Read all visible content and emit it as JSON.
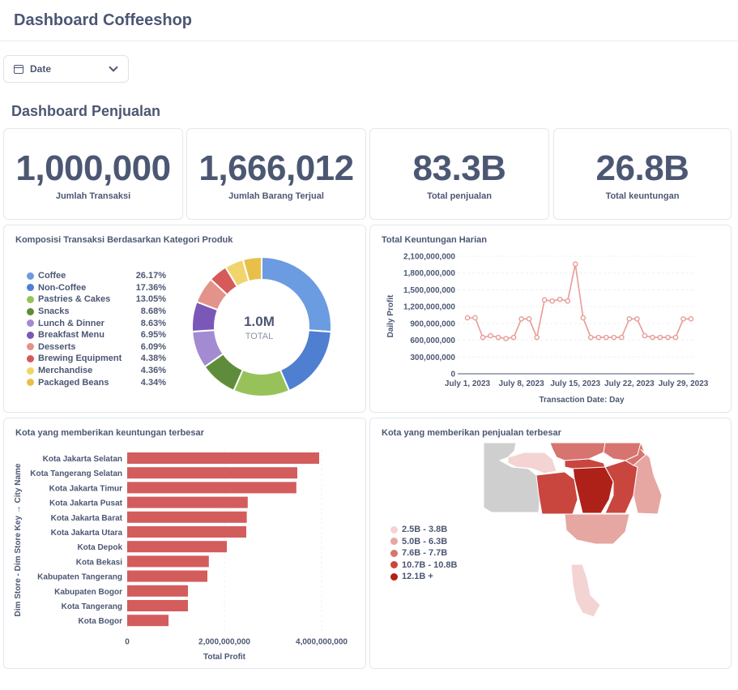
{
  "header": {
    "title": "Dashboard Coffeeshop"
  },
  "filter": {
    "icon": "calendar-icon",
    "label": "Date"
  },
  "section": {
    "title": "Dashboard Penjualan"
  },
  "kpis": [
    {
      "value": "1,000,000",
      "label": "Jumlah Transaksi"
    },
    {
      "value": "1,666,012",
      "label": "Jumlah Barang Terjual"
    },
    {
      "value": "83.3B",
      "label": "Total penjualan"
    },
    {
      "value": "26.8B",
      "label": "Total keuntungan"
    }
  ],
  "donut": {
    "title": "Komposisi Transaksi Berdasarkan Kategori Produk",
    "center_value": "1.0M",
    "center_label": "TOTAL",
    "chart_data": {
      "type": "pie",
      "categories": [
        "Coffee",
        "Non-Coffee",
        "Pastries & Cakes",
        "Snacks",
        "Lunch & Dinner",
        "Breakfast Menu",
        "Desserts",
        "Brewing Equipment",
        "Merchandise",
        "Packaged Beans"
      ],
      "values": [
        26.17,
        17.36,
        13.05,
        8.68,
        8.63,
        6.95,
        6.09,
        4.38,
        4.36,
        4.34
      ],
      "labels": [
        "26.17%",
        "17.36%",
        "13.05%",
        "8.68%",
        "8.63%",
        "6.95%",
        "6.09%",
        "4.38%",
        "4.36%",
        "4.34%"
      ],
      "colors": [
        "#6b9be0",
        "#4f7fd1",
        "#97c25a",
        "#5f8c3a",
        "#a38bd1",
        "#7a58b8",
        "#e3938a",
        "#d65a5a",
        "#f0d56e",
        "#e8c049"
      ],
      "legend": "left"
    }
  },
  "line": {
    "title": "Total Keuntungan Harian",
    "chart_data": {
      "type": "line",
      "xlabel": "Transaction Date: Day",
      "ylabel": "Daily Profit",
      "x_ticks": [
        "July 1, 2023",
        "July 8, 2023",
        "July 15, 2023",
        "July 22, 2023",
        "July 29, 2023"
      ],
      "y_ticks": [
        "0",
        "300,000,000",
        "600,000,000",
        "900,000,000",
        "1,200,000,000",
        "1,500,000,000",
        "1,800,000,000",
        "2,100,000,000"
      ],
      "ylim": [
        0,
        2100000000
      ],
      "x_start_label": "July 1, 2023",
      "grid": true,
      "color": "#e79c96",
      "series": [
        {
          "values": [
            1000000000,
            1000000000,
            650000000,
            680000000,
            650000000,
            630000000,
            650000000,
            980000000,
            980000000,
            650000000,
            1320000000,
            1300000000,
            1330000000,
            1300000000,
            1960000000,
            1000000000,
            650000000,
            650000000,
            650000000,
            650000000,
            650000000,
            980000000,
            980000000,
            680000000,
            650000000,
            650000000,
            650000000,
            650000000,
            980000000,
            980000000
          ]
        }
      ]
    }
  },
  "bars": {
    "title": "Kota yang memberikan keuntungan terbesar",
    "chart_data": {
      "type": "bar",
      "orientation": "horizontal",
      "xlabel": "Total Profit",
      "ylabel": "Dim Store - Dim Store Key → City Name",
      "x_ticks": [
        "0",
        "2,000,000,000",
        "4,000,000,000"
      ],
      "xlim": [
        0,
        4000000000
      ],
      "color": "#d35d5d",
      "categories": [
        "Kota Jakarta Selatan",
        "Kota Tangerang Selatan",
        "Kota Jakarta Timur",
        "Kota Jakarta Pusat",
        "Kota Jakarta Barat",
        "Kota Jakarta Utara",
        "Kota Depok",
        "Kota Bekasi",
        "Kabupaten Tangerang",
        "Kabupaten Bogor",
        "Kota Tangerang",
        "Kota Bogor"
      ],
      "values": [
        3950000000,
        3500000000,
        3480000000,
        2480000000,
        2460000000,
        2450000000,
        2050000000,
        1680000000,
        1650000000,
        1250000000,
        1250000000,
        850000000
      ]
    }
  },
  "map": {
    "title": "Kota yang memberikan penjualan terbesar",
    "legend": [
      {
        "label": "2.5B - 3.8B",
        "color": "#f3d4d2"
      },
      {
        "label": "5.0B - 6.3B",
        "color": "#e6a6a2"
      },
      {
        "label": "7.6B - 7.7B",
        "color": "#d77470"
      },
      {
        "label": "10.7B - 10.8B",
        "color": "#c9463f"
      },
      {
        "label": "12.1B +",
        "color": "#ae2119"
      }
    ]
  }
}
